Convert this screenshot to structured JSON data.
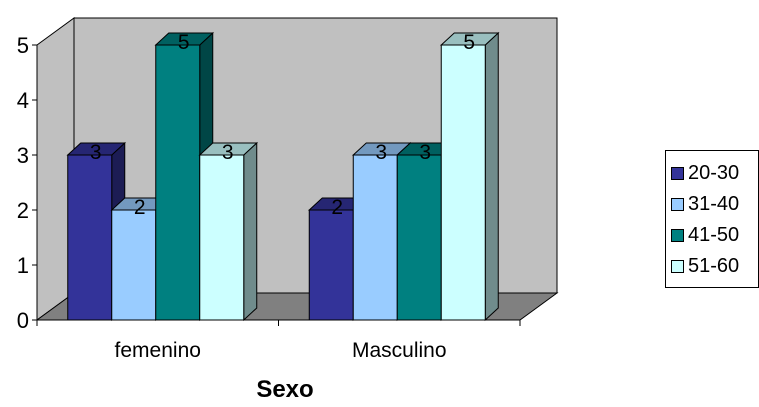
{
  "chart_data": {
    "type": "bar",
    "categories": [
      "femenino",
      "Masculino"
    ],
    "series": [
      {
        "name": "20-30",
        "values": [
          3,
          2
        ],
        "color": "#333399"
      },
      {
        "name": "31-40",
        "values": [
          2,
          3
        ],
        "color": "#99CCFF"
      },
      {
        "name": "41-50",
        "values": [
          5,
          3
        ],
        "color": "#008080"
      },
      {
        "name": "51-60",
        "values": [
          3,
          5
        ],
        "color": "#CCFFFF"
      }
    ],
    "yticks": [
      "0",
      "1",
      "2",
      "3",
      "4",
      "5"
    ],
    "ylim": [
      0,
      5
    ],
    "xlabel": "Sexo",
    "ylabel": "",
    "title": "",
    "grid": false,
    "style": "3d-clustered-column",
    "wall_color": "#C0C0C0",
    "floor_color": "#808080",
    "legend_position": "right"
  }
}
